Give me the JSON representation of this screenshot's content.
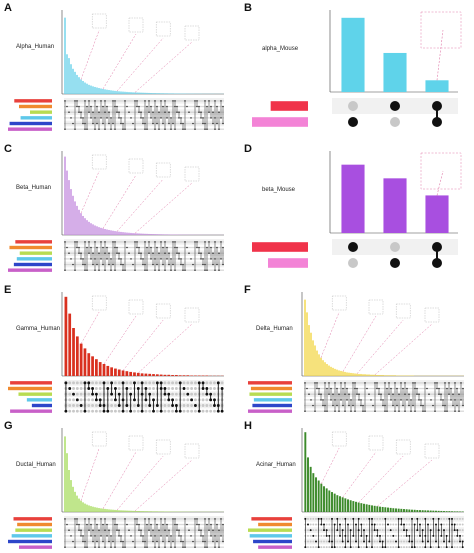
{
  "figure": {
    "panels": [
      {
        "letter": "A",
        "title": "Alpha_Human"
      },
      {
        "letter": "B",
        "title": "alpha_Mouse"
      },
      {
        "letter": "C",
        "title": "Beta_Human"
      },
      {
        "letter": "D",
        "title": "beta_Mouse"
      },
      {
        "letter": "E",
        "title": "Gamma_Human"
      },
      {
        "letter": "F",
        "title": "Delta_Human"
      },
      {
        "letter": "G",
        "title": "Ductal_Human"
      },
      {
        "letter": "H",
        "title": "Acinar_Human"
      }
    ]
  },
  "colors": {
    "A": "#6dd3ea",
    "B": "#5fd3ea",
    "C": "#c58ee0",
    "D": "#a84fe0",
    "E": "#d9301f",
    "F": "#f2d64a",
    "G": "#a8dc60",
    "H": "#3c8a2a",
    "dot_on": "#111111",
    "dot_off": "#c8c8c8",
    "mouse_set1": "#f0334a",
    "mouse_set2": "#f383d6",
    "set_palette": [
      "#e8413c",
      "#f08a2f",
      "#b8dc52",
      "#5ec8ea",
      "#2d46c9",
      "#c860c8"
    ]
  },
  "chart_data": [
    {
      "panel": "A",
      "type": "bar",
      "title": "Alpha_Human",
      "values": [
        1000,
        520,
        470,
        390,
        330,
        290,
        250,
        220,
        190,
        170,
        150,
        135,
        120,
        110,
        100,
        92,
        85,
        78,
        72,
        66,
        61,
        56,
        52,
        48,
        44,
        41,
        38,
        35,
        33,
        31,
        29,
        27,
        25,
        24,
        22,
        21,
        20,
        19,
        18,
        17,
        16,
        15,
        14,
        13,
        12,
        12,
        11,
        11,
        10,
        10,
        9,
        9,
        8,
        8,
        8,
        7,
        7,
        7,
        6,
        6,
        6,
        5,
        5,
        5,
        5,
        4,
        4,
        4,
        4,
        3,
        3,
        3,
        3,
        3,
        3,
        2,
        2,
        2,
        2,
        2
      ],
      "set_sizes": [
        1200,
        1050,
        700,
        1000,
        1350,
        1400
      ],
      "ylim": [
        0,
        1100
      ]
    },
    {
      "panel": "B",
      "type": "bar",
      "title": "alpha_Mouse",
      "values": [
        3.8,
        2.0,
        0.6
      ],
      "ylim": [
        0,
        4.2
      ],
      "set_sizes": [
        1.0,
        1.5
      ],
      "matrix": [
        [
          0,
          1,
          1
        ],
        [
          1,
          0,
          1
        ]
      ]
    },
    {
      "panel": "C",
      "type": "bar",
      "title": "Beta_Human",
      "values": [
        1400,
        1150,
        980,
        820,
        700,
        600,
        520,
        450,
        390,
        340,
        300,
        265,
        235,
        210,
        190,
        170,
        155,
        140,
        128,
        117,
        107,
        98,
        90,
        83,
        76,
        70,
        64,
        59,
        55,
        51,
        47,
        43,
        40,
        37,
        34,
        32,
        30,
        28,
        26,
        24,
        22,
        21,
        19,
        18,
        17,
        16,
        15,
        14,
        13,
        12,
        11,
        11,
        10,
        9,
        9,
        8,
        8,
        7,
        7,
        6,
        6,
        6,
        5,
        5,
        5,
        4,
        4,
        4,
        4,
        3,
        3,
        3,
        3,
        2,
        2,
        2,
        2,
        2,
        2,
        2
      ],
      "set_sizes": [
        1250,
        1450,
        1100,
        1200,
        1300,
        1500
      ],
      "ylim": [
        0,
        1500
      ]
    },
    {
      "panel": "D",
      "type": "bar",
      "title": "beta_Mouse",
      "values": [
        2.0,
        1.6,
        1.1
      ],
      "ylim": [
        0,
        2.4
      ],
      "set_sizes": [
        1.4,
        1.0
      ],
      "matrix": [
        [
          1,
          0,
          1
        ],
        [
          0,
          1,
          1
        ]
      ]
    },
    {
      "panel": "E",
      "type": "bar",
      "title": "Gamma_Human",
      "values": [
        330,
        260,
        200,
        165,
        135,
        115,
        95,
        82,
        70,
        58,
        50,
        42,
        36,
        31,
        27,
        23,
        20,
        17,
        15,
        13,
        11,
        10,
        9,
        8,
        7,
        6,
        5,
        5,
        4,
        4,
        3,
        3,
        3,
        2,
        2,
        2,
        2,
        2,
        1,
        1,
        1,
        1
      ],
      "set_sizes": [
        1000,
        1050,
        800,
        600,
        480,
        1000
      ],
      "ylim": [
        0,
        350
      ]
    },
    {
      "panel": "F",
      "type": "bar",
      "title": "Delta_Human",
      "values": [
        300,
        250,
        200,
        170,
        140,
        120,
        100,
        85,
        72,
        62,
        54,
        47,
        41,
        36,
        32,
        28,
        25,
        22,
        20,
        18,
        16,
        14,
        13,
        12,
        11,
        10,
        9,
        8,
        8,
        7,
        7,
        6,
        6,
        5,
        5,
        5,
        4,
        4,
        4,
        4,
        3,
        3,
        3,
        3,
        3,
        3,
        2,
        2,
        2,
        2,
        2,
        2,
        2,
        2,
        2,
        1,
        1,
        1,
        1,
        1,
        1,
        1,
        1,
        1,
        1,
        1,
        1,
        1,
        1,
        1,
        1,
        1,
        1,
        1,
        1,
        1,
        1,
        1,
        1,
        1
      ],
      "set_sizes": [
        1500,
        1400,
        1450,
        1300,
        1350,
        1500
      ],
      "ylim": [
        0,
        330
      ]
    },
    {
      "panel": "G",
      "type": "bar",
      "title": "Ductal_Human",
      "values": [
        900,
        700,
        500,
        380,
        300,
        240,
        195,
        160,
        135,
        115,
        100,
        88,
        78,
        70,
        63,
        57,
        52,
        47,
        43,
        40,
        37,
        34,
        31,
        29,
        27,
        25,
        23,
        21,
        20,
        19,
        18,
        17,
        16,
        15,
        14,
        13,
        12,
        12,
        11,
        11,
        10,
        10,
        9,
        9,
        8,
        8,
        8,
        7,
        7,
        7,
        6,
        6,
        6,
        6,
        5,
        5,
        5,
        5,
        5,
        4,
        4,
        4,
        4,
        4,
        4,
        3,
        3,
        3,
        3,
        3,
        3,
        3,
        3,
        2,
        2,
        2,
        2,
        2,
        2,
        2
      ],
      "set_sizes": [
        1050,
        950,
        1000,
        1100,
        1200,
        900
      ],
      "ylim": [
        0,
        1000
      ]
    },
    {
      "panel": "H",
      "type": "bar",
      "title": "Acinar_Human",
      "values": [
        760,
        520,
        430,
        370,
        330,
        300,
        270,
        245,
        225,
        205,
        190,
        175,
        160,
        150,
        140,
        130,
        120,
        112,
        104,
        97,
        90,
        84,
        78,
        73,
        68,
        63,
        59,
        55,
        51,
        48,
        45,
        42,
        39,
        36,
        34,
        32,
        30,
        28,
        26,
        24,
        22,
        21,
        19,
        18,
        17,
        16,
        15,
        14,
        13,
        12,
        11,
        10,
        9,
        8,
        8,
        7,
        6,
        6,
        5,
        5
      ],
      "set_sizes": [
        1200,
        1000,
        1300,
        1250,
        1150,
        1000
      ],
      "ylim": [
        0,
        800
      ]
    }
  ]
}
